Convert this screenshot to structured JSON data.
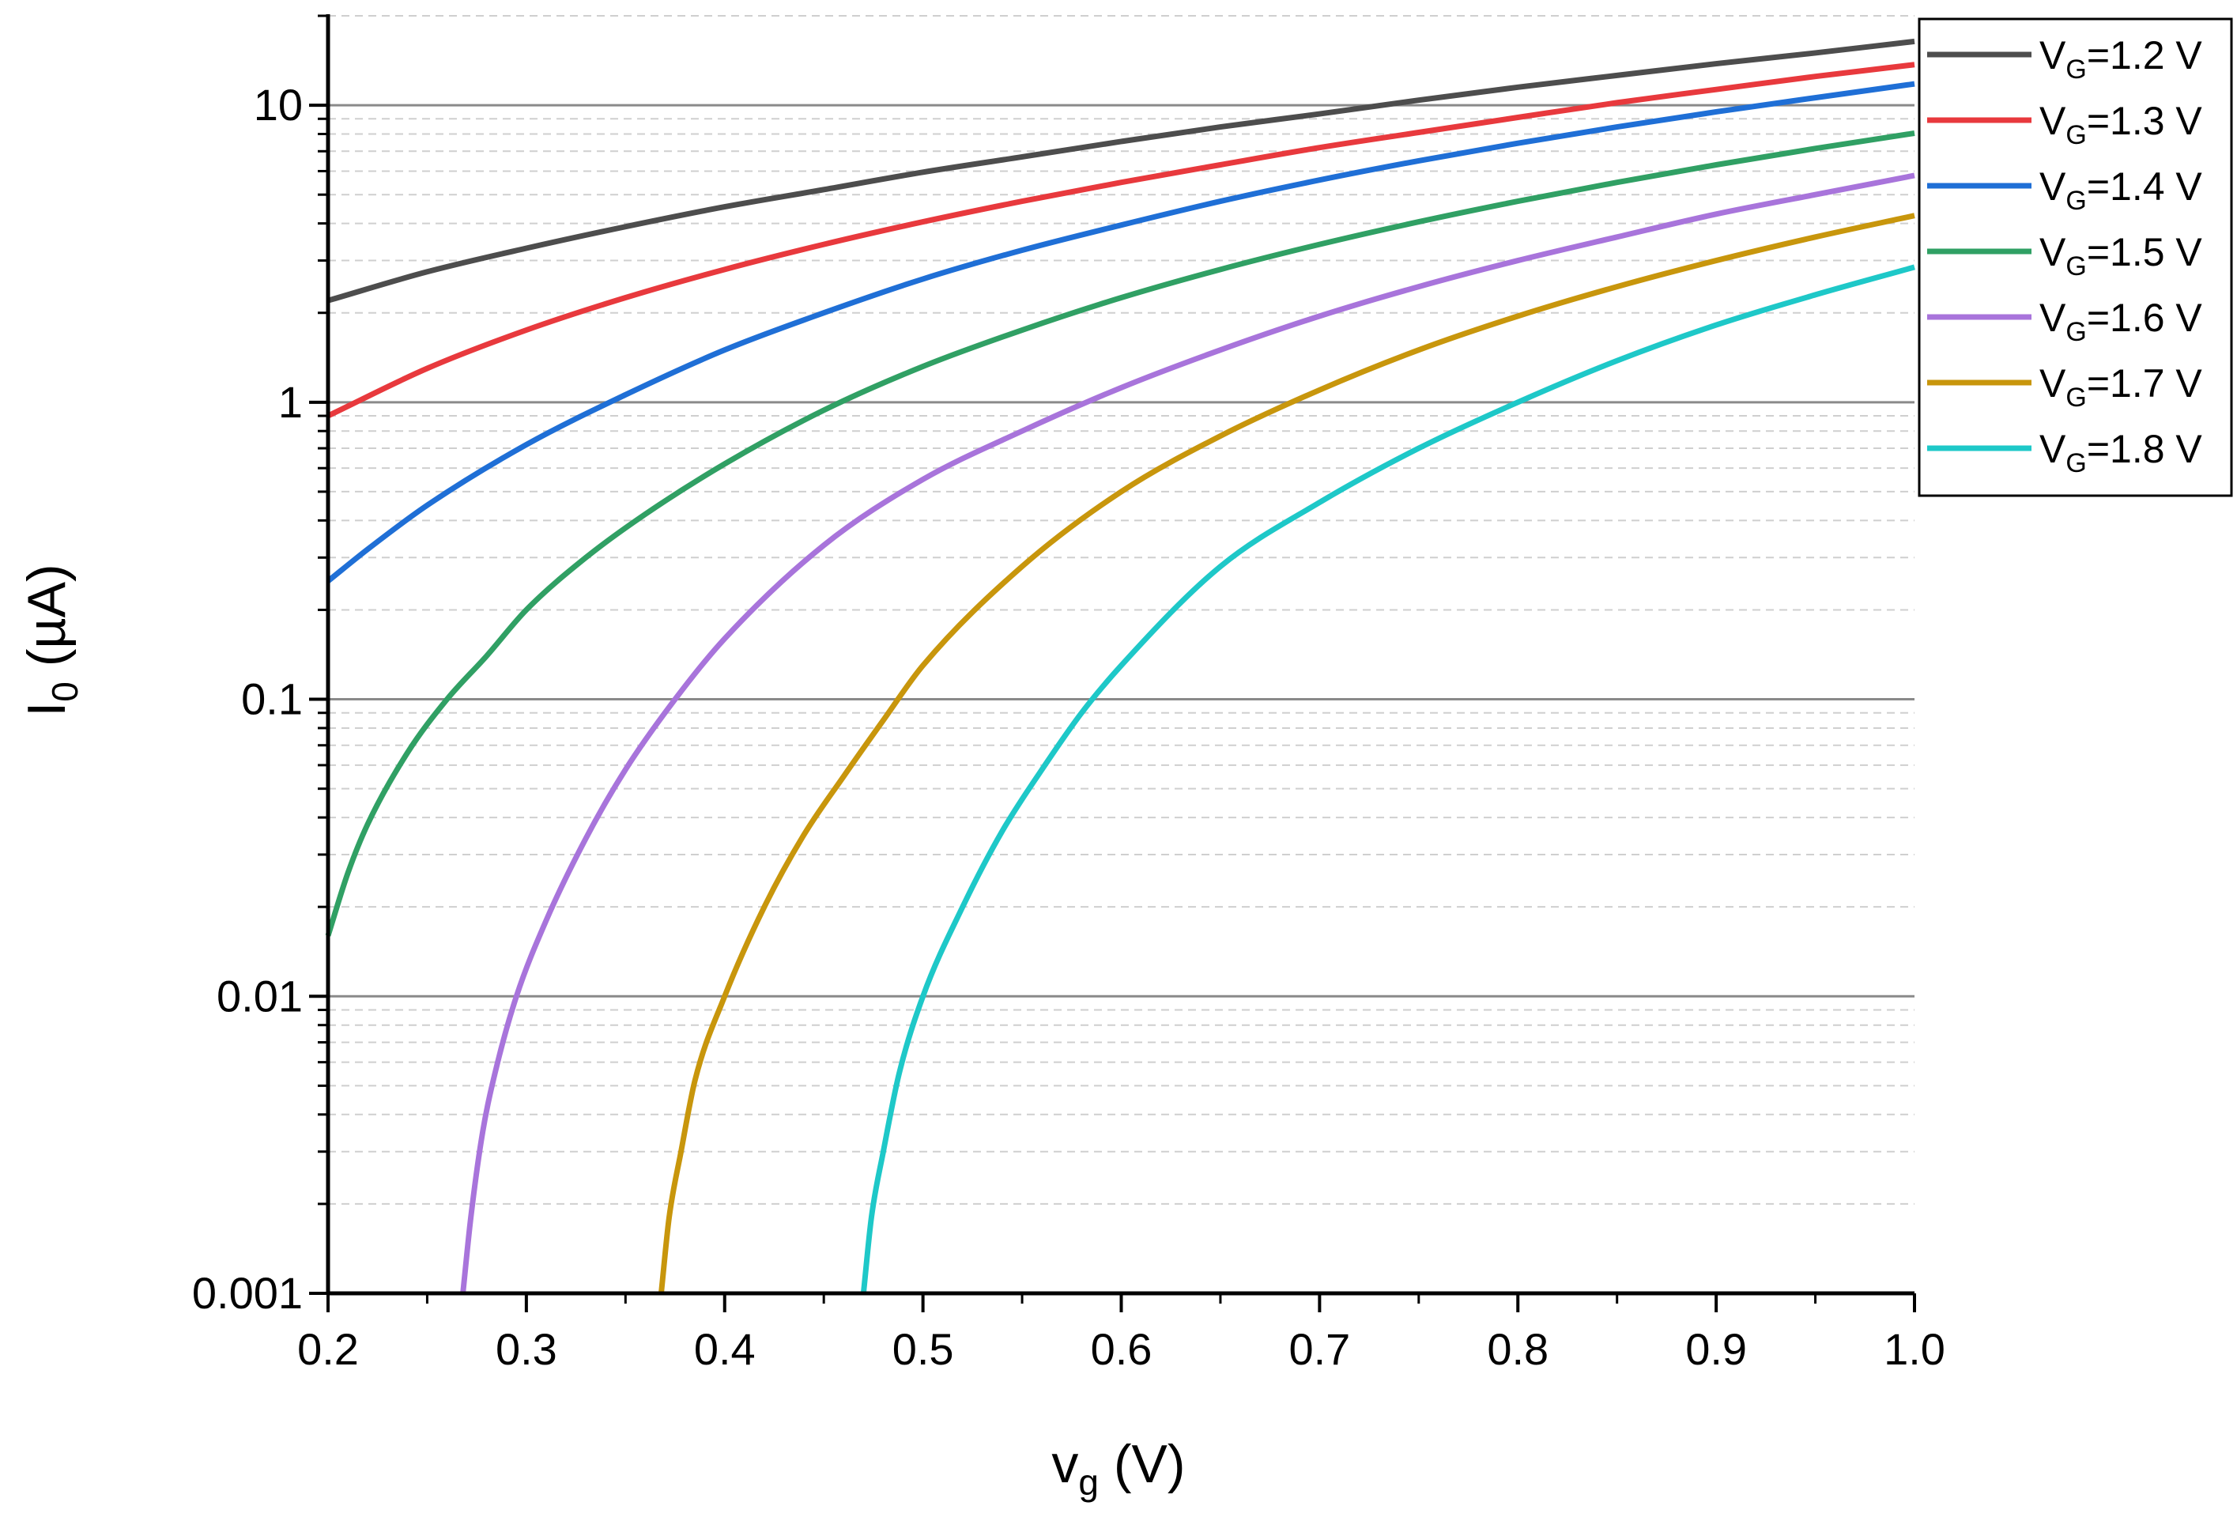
{
  "chart_data": {
    "type": "line",
    "title": "",
    "x_scale": "linear",
    "y_scale": "log",
    "xlim": [
      0.2,
      1.0
    ],
    "ylim": [
      0.001,
      20
    ],
    "xlabel": {
      "main": "v",
      "sub": "g",
      "unit": " (V)"
    },
    "ylabel": {
      "main": "I",
      "sub": "0",
      "unit": " (µA)"
    },
    "x_ticks": [
      {
        "value": 0.2,
        "label": "0.2"
      },
      {
        "value": 0.3,
        "label": "0.3"
      },
      {
        "value": 0.4,
        "label": "0.4"
      },
      {
        "value": 0.5,
        "label": "0.5"
      },
      {
        "value": 0.6,
        "label": "0.6"
      },
      {
        "value": 0.7,
        "label": "0.7"
      },
      {
        "value": 0.8,
        "label": "0.8"
      },
      {
        "value": 0.9,
        "label": "0.9"
      },
      {
        "value": 1.0,
        "label": "1.0"
      }
    ],
    "y_ticks": [
      {
        "value": 0.001,
        "label": "0.001"
      },
      {
        "value": 0.01,
        "label": "0.01"
      },
      {
        "value": 0.1,
        "label": "0.1"
      },
      {
        "value": 1,
        "label": "1"
      },
      {
        "value": 10,
        "label": "10"
      }
    ],
    "grid": {
      "major_y": true,
      "minor_y": true
    },
    "legend_position": "top-right",
    "series": [
      {
        "name": "VG=1.2 V",
        "label_main": "V",
        "label_sub": "G",
        "label_rest": "=1.2 V",
        "color": "#4d4d4d",
        "x": [
          0.2,
          0.25,
          0.3,
          0.35,
          0.4,
          0.45,
          0.5,
          0.55,
          0.6,
          0.65,
          0.7,
          0.75,
          0.8,
          0.85,
          0.9,
          0.95,
          1.0
        ],
        "y": [
          2.2,
          2.75,
          3.3,
          3.9,
          4.55,
          5.2,
          5.95,
          6.7,
          7.55,
          8.45,
          9.35,
          10.4,
          11.5,
          12.6,
          13.8,
          15.0,
          16.4
        ]
      },
      {
        "name": "VG=1.3 V",
        "label_main": "V",
        "label_sub": "G",
        "label_rest": "=1.3 V",
        "color": "#e8393d",
        "x": [
          0.2,
          0.25,
          0.3,
          0.35,
          0.4,
          0.45,
          0.5,
          0.55,
          0.6,
          0.65,
          0.7,
          0.75,
          0.8,
          0.85,
          0.9,
          0.95,
          1.0
        ],
        "y": [
          0.9,
          1.3,
          1.75,
          2.25,
          2.8,
          3.4,
          4.05,
          4.75,
          5.5,
          6.3,
          7.2,
          8.1,
          9.1,
          10.2,
          11.3,
          12.5,
          13.7
        ]
      },
      {
        "name": "VG=1.4 V",
        "label_main": "V",
        "label_sub": "G",
        "label_rest": "=1.4 V",
        "color": "#1f6fd6",
        "x": [
          0.2,
          0.22,
          0.25,
          0.3,
          0.35,
          0.4,
          0.45,
          0.5,
          0.55,
          0.6,
          0.65,
          0.7,
          0.75,
          0.8,
          0.85,
          0.9,
          0.95,
          1.0
        ],
        "y": [
          0.25,
          0.32,
          0.45,
          0.72,
          1.06,
          1.5,
          2.0,
          2.6,
          3.25,
          3.95,
          4.75,
          5.6,
          6.5,
          7.45,
          8.45,
          9.5,
          10.6,
          11.8
        ]
      },
      {
        "name": "VG=1.5 V",
        "label_main": "V",
        "label_sub": "G",
        "label_rest": "=1.5 V",
        "color": "#30a064",
        "x": [
          0.2,
          0.21,
          0.22,
          0.24,
          0.26,
          0.28,
          0.3,
          0.33,
          0.36,
          0.4,
          0.45,
          0.5,
          0.55,
          0.6,
          0.65,
          0.7,
          0.75,
          0.8,
          0.85,
          0.9,
          0.95,
          1.0
        ],
        "y": [
          0.016,
          0.026,
          0.038,
          0.066,
          0.1,
          0.14,
          0.2,
          0.3,
          0.42,
          0.62,
          0.94,
          1.32,
          1.75,
          2.25,
          2.8,
          3.4,
          4.05,
          4.75,
          5.5,
          6.3,
          7.15,
          8.05
        ]
      },
      {
        "name": "VG=1.6 V",
        "label_main": "V",
        "label_sub": "G",
        "label_rest": "=1.6 V",
        "color": "#a874db",
        "x": [
          0.268,
          0.272,
          0.278,
          0.285,
          0.295,
          0.31,
          0.33,
          0.35,
          0.375,
          0.4,
          0.45,
          0.5,
          0.55,
          0.6,
          0.65,
          0.7,
          0.75,
          0.8,
          0.85,
          0.9,
          0.95,
          1.0
        ],
        "y": [
          0.001,
          0.0018,
          0.0035,
          0.0058,
          0.01,
          0.018,
          0.034,
          0.058,
          0.1,
          0.16,
          0.33,
          0.55,
          0.8,
          1.12,
          1.5,
          1.95,
          2.45,
          3.0,
          3.6,
          4.3,
          5.0,
          5.8
        ]
      },
      {
        "name": "VG=1.7 V",
        "label_main": "V",
        "label_sub": "G",
        "label_rest": "=1.7 V",
        "color": "#c8960c",
        "x": [
          0.368,
          0.372,
          0.378,
          0.385,
          0.4,
          0.42,
          0.44,
          0.46,
          0.48,
          0.5,
          0.55,
          0.6,
          0.65,
          0.7,
          0.75,
          0.8,
          0.85,
          0.9,
          0.95,
          1.0
        ],
        "y": [
          0.001,
          0.0018,
          0.003,
          0.0052,
          0.01,
          0.02,
          0.035,
          0.055,
          0.085,
          0.13,
          0.28,
          0.5,
          0.77,
          1.1,
          1.5,
          1.95,
          2.45,
          3.0,
          3.6,
          4.25
        ]
      },
      {
        "name": "VG=1.8 V",
        "label_main": "V",
        "label_sub": "G",
        "label_rest": "=1.8 V",
        "color": "#1ec8c8",
        "x": [
          0.47,
          0.474,
          0.48,
          0.488,
          0.5,
          0.52,
          0.54,
          0.56,
          0.58,
          0.6,
          0.65,
          0.7,
          0.75,
          0.8,
          0.85,
          0.9,
          0.95,
          1.0
        ],
        "y": [
          0.001,
          0.0018,
          0.003,
          0.0055,
          0.01,
          0.02,
          0.036,
          0.058,
          0.09,
          0.13,
          0.28,
          0.46,
          0.7,
          1.0,
          1.38,
          1.82,
          2.3,
          2.85
        ]
      }
    ]
  }
}
